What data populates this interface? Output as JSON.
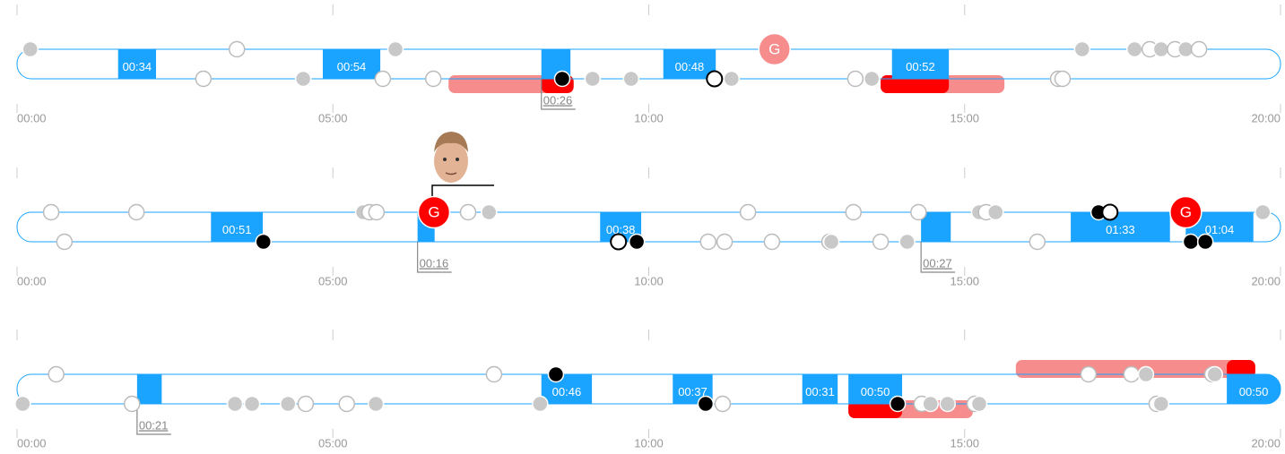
{
  "periods": [
    {
      "xlim": [
        0,
        20
      ],
      "xticks": [
        {
          "value": 0,
          "label": "00:00"
        },
        {
          "value": 5,
          "label": "05:00"
        },
        {
          "value": 10,
          "label": "10:00"
        },
        {
          "value": 15,
          "label": "15:00"
        },
        {
          "value": 20,
          "label": "20:00"
        }
      ],
      "bars": [
        {
          "start": 6.83,
          "end": 8.81,
          "lane": 1,
          "color": "#f78c8c"
        },
        {
          "start": 8.3,
          "end": 8.81,
          "lane": 1,
          "color": "#ff0000"
        },
        {
          "start": 13.67,
          "end": 15.63,
          "lane": 1,
          "color": "#f78c8c"
        },
        {
          "start": 13.67,
          "end": 14.75,
          "lane": 1,
          "color": "#ff0000"
        }
      ],
      "blocks": [
        {
          "start": 1.6,
          "end": 2.2,
          "label": "00:34"
        },
        {
          "start": 4.84,
          "end": 5.75,
          "label": "00:54"
        },
        {
          "start": 8.3,
          "end": 8.76,
          "note": "00:26"
        },
        {
          "start": 10.23,
          "end": 11.06,
          "label": "00:48"
        },
        {
          "start": 13.85,
          "end": 14.75,
          "label": "00:52"
        }
      ],
      "dots": [
        {
          "time": 0.21,
          "lane": 0,
          "kind": "grey"
        },
        {
          "time": 3.48,
          "lane": 0,
          "kind": "white"
        },
        {
          "time": 5.99,
          "lane": 0,
          "kind": "grey"
        },
        {
          "time": 16.86,
          "lane": 0,
          "kind": "grey"
        },
        {
          "time": 17.69,
          "lane": 0,
          "kind": "grey"
        },
        {
          "time": 17.93,
          "lane": 0,
          "kind": "white"
        },
        {
          "time": 18.11,
          "lane": 0,
          "kind": "grey"
        },
        {
          "time": 18.33,
          "lane": 0,
          "kind": "white"
        },
        {
          "time": 18.5,
          "lane": 0,
          "kind": "grey"
        },
        {
          "time": 18.71,
          "lane": 0,
          "kind": "white"
        },
        {
          "time": 2.95,
          "lane": 1,
          "kind": "white"
        },
        {
          "time": 4.53,
          "lane": 1,
          "kind": "grey"
        },
        {
          "time": 5.79,
          "lane": 1,
          "kind": "white"
        },
        {
          "time": 6.59,
          "lane": 1,
          "kind": "white"
        },
        {
          "time": 8.63,
          "lane": 1,
          "kind": "black"
        },
        {
          "time": 9.11,
          "lane": 1,
          "kind": "grey"
        },
        {
          "time": 9.72,
          "lane": 1,
          "kind": "grey"
        },
        {
          "time": 11.04,
          "lane": 1,
          "kind": "open"
        },
        {
          "time": 11.31,
          "lane": 1,
          "kind": "grey"
        },
        {
          "time": 13.27,
          "lane": 1,
          "kind": "white"
        },
        {
          "time": 13.53,
          "lane": 1,
          "kind": "grey"
        },
        {
          "time": 16.48,
          "lane": 1,
          "kind": "white"
        },
        {
          "time": 16.55,
          "lane": 1,
          "kind": "white"
        }
      ],
      "goals": [
        {
          "time": 11.99,
          "lane": 0,
          "label": "G",
          "color": "#f78c8c"
        }
      ]
    },
    {
      "xlim": [
        0,
        20
      ],
      "xticks": [
        {
          "value": 0,
          "label": "00:00"
        },
        {
          "value": 5,
          "label": "05:00"
        },
        {
          "value": 10,
          "label": "10:00"
        },
        {
          "value": 15,
          "label": "15:00"
        },
        {
          "value": 20,
          "label": "20:00"
        }
      ],
      "bars": [],
      "blocks": [
        {
          "start": 3.07,
          "end": 3.89,
          "label": "00:51"
        },
        {
          "start": 6.34,
          "end": 6.61,
          "note": "00:16"
        },
        {
          "start": 9.23,
          "end": 9.88,
          "label": "00:38"
        },
        {
          "start": 14.31,
          "end": 14.78,
          "note": "00:27"
        },
        {
          "start": 16.68,
          "end": 18.25,
          "label": "01:33"
        },
        {
          "start": 18.5,
          "end": 19.57,
          "label": "01:04"
        }
      ],
      "dots": [
        {
          "time": 0.54,
          "lane": 0,
          "kind": "white"
        },
        {
          "time": 1.89,
          "lane": 0,
          "kind": "white"
        },
        {
          "time": 5.48,
          "lane": 0,
          "kind": "grey"
        },
        {
          "time": 5.58,
          "lane": 0,
          "kind": "white"
        },
        {
          "time": 5.69,
          "lane": 0,
          "kind": "white"
        },
        {
          "time": 7.14,
          "lane": 0,
          "kind": "white"
        },
        {
          "time": 7.47,
          "lane": 0,
          "kind": "grey"
        },
        {
          "time": 11.57,
          "lane": 0,
          "kind": "white"
        },
        {
          "time": 13.24,
          "lane": 0,
          "kind": "white"
        },
        {
          "time": 14.27,
          "lane": 0,
          "kind": "white"
        },
        {
          "time": 15.23,
          "lane": 0,
          "kind": "grey"
        },
        {
          "time": 15.34,
          "lane": 0,
          "kind": "white"
        },
        {
          "time": 15.49,
          "lane": 0,
          "kind": "grey"
        },
        {
          "time": 17.12,
          "lane": 0,
          "kind": "black"
        },
        {
          "time": 17.3,
          "lane": 0,
          "kind": "open"
        },
        {
          "time": 19.72,
          "lane": 0,
          "kind": "grey"
        },
        {
          "time": 0.75,
          "lane": 1,
          "kind": "white"
        },
        {
          "time": 3.9,
          "lane": 1,
          "kind": "black"
        },
        {
          "time": 9.52,
          "lane": 1,
          "kind": "open"
        },
        {
          "time": 9.81,
          "lane": 1,
          "kind": "black"
        },
        {
          "time": 10.94,
          "lane": 1,
          "kind": "white"
        },
        {
          "time": 11.2,
          "lane": 1,
          "kind": "white"
        },
        {
          "time": 11.95,
          "lane": 1,
          "kind": "white"
        },
        {
          "time": 12.86,
          "lane": 1,
          "kind": "white"
        },
        {
          "time": 12.89,
          "lane": 1,
          "kind": "grey"
        },
        {
          "time": 13.67,
          "lane": 1,
          "kind": "white"
        },
        {
          "time": 14.09,
          "lane": 1,
          "kind": "grey"
        },
        {
          "time": 16.15,
          "lane": 1,
          "kind": "white"
        },
        {
          "time": 18.58,
          "lane": 1,
          "kind": "black"
        },
        {
          "time": 18.81,
          "lane": 1,
          "kind": "black"
        }
      ],
      "goals": [
        {
          "time": 6.6,
          "lane": 0,
          "label": "G",
          "color": "#ff0000"
        },
        {
          "time": 18.5,
          "lane": 0,
          "label": "G",
          "color": "#ff0000"
        }
      ]
    },
    {
      "xlim": [
        0,
        20
      ],
      "xticks": [
        {
          "value": 0,
          "label": "00:00"
        },
        {
          "value": 5,
          "label": "05:00"
        },
        {
          "value": 10,
          "label": "10:00"
        },
        {
          "value": 15,
          "label": "15:00"
        },
        {
          "value": 20,
          "label": "20:00"
        }
      ],
      "bars": [
        {
          "start": 13.16,
          "end": 15.13,
          "lane": 1,
          "color": "#f78c8c"
        },
        {
          "start": 13.16,
          "end": 14.01,
          "lane": 1,
          "color": "#ff0000"
        },
        {
          "start": 15.81,
          "end": 19.6,
          "lane": 0,
          "color": "#f78c8c"
        },
        {
          "start": 19.15,
          "end": 19.6,
          "lane": 0,
          "color": "#ff0000"
        }
      ],
      "blocks": [
        {
          "start": 1.9,
          "end": 2.29,
          "note": "00:21"
        },
        {
          "start": 8.3,
          "end": 9.1,
          "label": "00:46"
        },
        {
          "start": 10.38,
          "end": 11.01,
          "label": "00:37"
        },
        {
          "start": 12.43,
          "end": 12.99,
          "label": "00:31"
        },
        {
          "start": 13.16,
          "end": 14.01,
          "label": "00:50"
        },
        {
          "start": 19.15,
          "end": 20,
          "label": "00:50"
        }
      ],
      "dots": [
        {
          "time": 0.62,
          "lane": 0,
          "kind": "white"
        },
        {
          "time": 7.55,
          "lane": 0,
          "kind": "white"
        },
        {
          "time": 8.53,
          "lane": 0,
          "kind": "black"
        },
        {
          "time": 16.96,
          "lane": 0,
          "kind": "white"
        },
        {
          "time": 17.64,
          "lane": 0,
          "kind": "white"
        },
        {
          "time": 17.87,
          "lane": 0,
          "kind": "grey"
        },
        {
          "time": 18.92,
          "lane": 0,
          "kind": "white"
        },
        {
          "time": 18.96,
          "lane": 0,
          "kind": "grey"
        },
        {
          "time": 0.09,
          "lane": 1,
          "kind": "grey"
        },
        {
          "time": 1.82,
          "lane": 1,
          "kind": "white"
        },
        {
          "time": 3.45,
          "lane": 1,
          "kind": "grey"
        },
        {
          "time": 3.72,
          "lane": 1,
          "kind": "grey"
        },
        {
          "time": 4.29,
          "lane": 1,
          "kind": "grey"
        },
        {
          "time": 4.57,
          "lane": 1,
          "kind": "white"
        },
        {
          "time": 5.22,
          "lane": 1,
          "kind": "white"
        },
        {
          "time": 5.68,
          "lane": 1,
          "kind": "grey"
        },
        {
          "time": 8.28,
          "lane": 1,
          "kind": "grey"
        },
        {
          "time": 10.9,
          "lane": 1,
          "kind": "black"
        },
        {
          "time": 11.17,
          "lane": 1,
          "kind": "white"
        },
        {
          "time": 13.94,
          "lane": 1,
          "kind": "black"
        },
        {
          "time": 14.32,
          "lane": 1,
          "kind": "white"
        },
        {
          "time": 14.46,
          "lane": 1,
          "kind": "grey"
        },
        {
          "time": 14.73,
          "lane": 1,
          "kind": "grey"
        },
        {
          "time": 15.16,
          "lane": 1,
          "kind": "white"
        },
        {
          "time": 15.23,
          "lane": 1,
          "kind": "grey"
        },
        {
          "time": 18.04,
          "lane": 1,
          "kind": "white"
        },
        {
          "time": 18.11,
          "lane": 1,
          "kind": "grey"
        }
      ],
      "goals": []
    }
  ]
}
